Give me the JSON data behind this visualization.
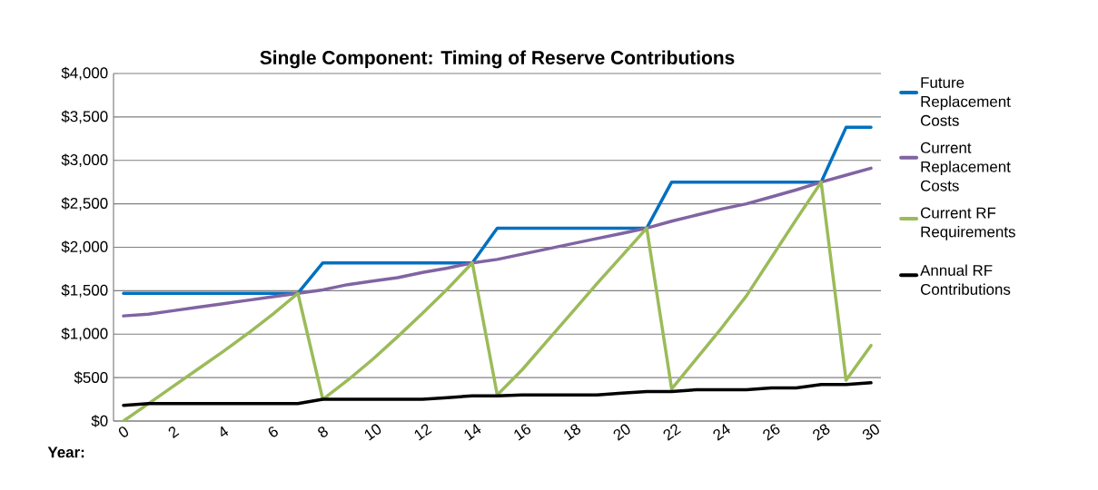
{
  "chart_data": {
    "type": "line",
    "title": "Single Component: Timing of Reserve Contributions",
    "xlabel": "Year:",
    "x": [
      0,
      1,
      2,
      3,
      4,
      5,
      6,
      7,
      8,
      9,
      10,
      11,
      12,
      13,
      14,
      15,
      16,
      17,
      18,
      19,
      20,
      21,
      22,
      23,
      24,
      25,
      26,
      27,
      28,
      29,
      30
    ],
    "xlim": [
      -0.4,
      30.4
    ],
    "xticks": [
      0,
      2,
      4,
      6,
      8,
      10,
      12,
      14,
      16,
      18,
      20,
      22,
      24,
      26,
      28,
      30
    ],
    "ylim": [
      0,
      4000
    ],
    "yticks": [
      {
        "value": 0,
        "label": "$0"
      },
      {
        "value": 500,
        "label": "$500"
      },
      {
        "value": 1000,
        "label": "$1,000"
      },
      {
        "value": 1500,
        "label": "$1,500"
      },
      {
        "value": 2000,
        "label": "$2,000"
      },
      {
        "value": 2500,
        "label": "$2,500"
      },
      {
        "value": 3000,
        "label": "$3,000"
      },
      {
        "value": 3500,
        "label": "$3,500"
      },
      {
        "value": 4000,
        "label": "$4,000"
      }
    ],
    "grid": "y",
    "legend": "right",
    "marker": "none",
    "line_style": "solid",
    "series": [
      {
        "name": "Future Replacement Costs",
        "color": "#0070c0",
        "values": [
          1470,
          1470,
          1470,
          1470,
          1470,
          1470,
          1470,
          1470,
          1820,
          1820,
          1820,
          1820,
          1820,
          1820,
          1820,
          2220,
          2220,
          2220,
          2220,
          2220,
          2220,
          2220,
          2750,
          2750,
          2750,
          2750,
          2750,
          2750,
          2750,
          3380,
          3380
        ]
      },
      {
        "name": "Current Replacement Costs",
        "color": "#8064a2",
        "values": [
          1210,
          1230,
          1270,
          1310,
          1350,
          1390,
          1430,
          1470,
          1510,
          1570,
          1610,
          1650,
          1710,
          1760,
          1820,
          1860,
          1920,
          1980,
          2040,
          2100,
          2160,
          2220,
          2300,
          2370,
          2440,
          2500,
          2580,
          2660,
          2750,
          2830,
          2910
        ]
      },
      {
        "name": "Current RF Requirements",
        "color": "#9bbb59",
        "values": [
          0,
          200,
          400,
          600,
          800,
          1010,
          1230,
          1470,
          250,
          470,
          710,
          970,
          1240,
          1520,
          1820,
          300,
          590,
          920,
          1250,
          1580,
          1900,
          2220,
          370,
          720,
          1070,
          1440,
          1880,
          2320,
          2750,
          470,
          870
        ]
      },
      {
        "name": "Annual RF Contributions",
        "color": "#000000",
        "values": [
          180,
          200,
          200,
          200,
          200,
          200,
          200,
          200,
          250,
          250,
          250,
          250,
          250,
          270,
          290,
          290,
          300,
          300,
          300,
          300,
          320,
          340,
          340,
          360,
          360,
          360,
          380,
          380,
          420,
          420,
          440
        ]
      }
    ]
  }
}
